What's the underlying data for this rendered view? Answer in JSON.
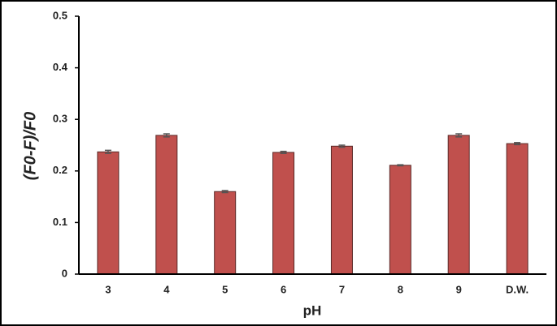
{
  "chart_data": {
    "type": "bar",
    "x_label": "pH",
    "y_label": "(F0-F)/F0",
    "categories": [
      "3",
      "4",
      "5",
      "6",
      "7",
      "8",
      "9",
      "D.W."
    ],
    "values": [
      0.237,
      0.269,
      0.16,
      0.236,
      0.248,
      0.211,
      0.269,
      0.253
    ],
    "errors": [
      0.003,
      0.003,
      0.002,
      0.002,
      0.002,
      0.001,
      0.003,
      0.002
    ],
    "color": "#c0504d",
    "ylim": [
      0,
      0.5
    ],
    "yticks": [
      0,
      0.1,
      0.2,
      0.3,
      0.4,
      0.5
    ],
    "grid": false
  }
}
